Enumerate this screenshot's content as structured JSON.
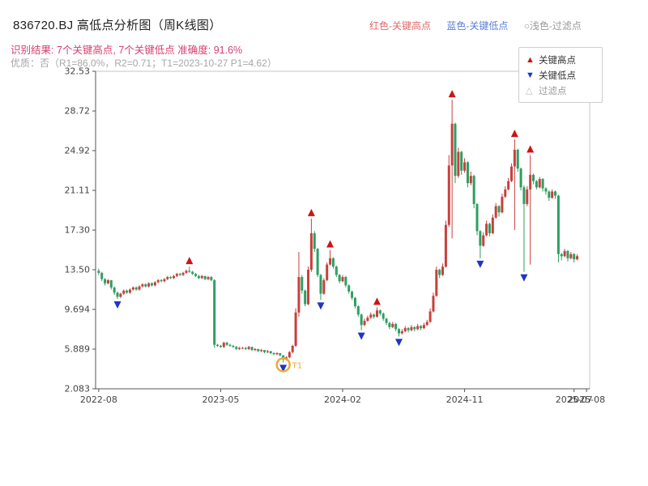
{
  "header": {
    "title": "836720.BJ 高低点分析图（周K线图）",
    "legend_top": [
      {
        "label": "红色-关键高点",
        "color": "#e06a6a"
      },
      {
        "label": "蓝色-关键低点",
        "color": "#5b7fd6"
      },
      {
        "label": "○浅色-过滤点",
        "color": "#9a9a9a"
      }
    ],
    "result_line": "识别结果: 7个关键高点, 7个关键低点  准确度: 91.6%",
    "quality_line": "优质：否（R1=86.0%，R2=0.71；T1=2023-10-27 P1=4.62）",
    "recognition": {
      "key_highs": 7,
      "key_lows": 7,
      "accuracy": "91.6%"
    }
  },
  "chart_legend": {
    "items": [
      {
        "label": "关键高点",
        "marker": "up-triangle",
        "color": "#cc1414"
      },
      {
        "label": "关键低点",
        "marker": "down-triangle",
        "color": "#1f35c4"
      },
      {
        "label": "过滤点",
        "marker": "light-triangle",
        "color": "#bbbbbb"
      }
    ]
  },
  "chart_data": {
    "type": "candlestick",
    "title": "836720.BJ 高低点分析图（周K线图）",
    "xlabel": "",
    "ylabel": "",
    "grid": false,
    "legend_position": "top-right",
    "ylim": [
      2.083,
      32.53
    ],
    "xlim_weeks": [
      -1,
      157
    ],
    "y_ticks": [
      [
        2.083,
        "2.083"
      ],
      [
        5.889,
        "5.889"
      ],
      [
        9.694,
        "9.694"
      ],
      [
        13.5,
        "13.50"
      ],
      [
        17.3,
        "17.30"
      ],
      [
        21.11,
        "21.11"
      ],
      [
        24.92,
        "24.92"
      ],
      [
        28.72,
        "28.72"
      ],
      [
        32.53,
        "32.53"
      ]
    ],
    "x_ticks": [
      [
        0,
        "2022-08"
      ],
      [
        39,
        "2023-05"
      ],
      [
        78,
        "2024-02"
      ],
      [
        117,
        "2024-11"
      ],
      [
        152,
        "2025-07"
      ],
      [
        156,
        "2025-08"
      ]
    ],
    "colors": {
      "up": "#c8403c",
      "down": "#2e9e62",
      "key_high": "#cc1414",
      "key_low": "#1f35c4",
      "filtered_ring": "#f0a838"
    },
    "candles": [
      [
        13.4,
        13.6,
        13.0,
        13.2
      ],
      [
        13.2,
        13.3,
        12.4,
        12.6
      ],
      [
        12.6,
        12.7,
        12.0,
        12.2
      ],
      [
        12.2,
        12.6,
        12.1,
        12.5
      ],
      [
        12.5,
        12.5,
        11.6,
        11.8
      ],
      [
        11.8,
        11.9,
        11.1,
        11.3
      ],
      [
        11.3,
        11.4,
        10.7,
        10.9
      ],
      [
        10.9,
        11.3,
        10.8,
        11.2
      ],
      [
        11.2,
        11.6,
        11.1,
        11.5
      ],
      [
        11.5,
        11.6,
        11.2,
        11.3
      ],
      [
        11.3,
        11.7,
        11.2,
        11.6
      ],
      [
        11.6,
        11.9,
        11.5,
        11.8
      ],
      [
        11.8,
        11.9,
        11.5,
        11.6
      ],
      [
        11.6,
        12.0,
        11.5,
        11.9
      ],
      [
        11.9,
        12.2,
        11.8,
        12.1
      ],
      [
        12.1,
        12.2,
        11.8,
        11.9
      ],
      [
        11.9,
        12.3,
        11.8,
        12.2
      ],
      [
        12.2,
        12.3,
        11.9,
        12.0
      ],
      [
        12.0,
        12.4,
        11.9,
        12.3
      ],
      [
        12.3,
        12.6,
        12.2,
        12.5
      ],
      [
        12.5,
        12.6,
        12.3,
        12.4
      ],
      [
        12.4,
        12.7,
        12.3,
        12.6
      ],
      [
        12.6,
        12.9,
        12.5,
        12.8
      ],
      [
        12.8,
        12.9,
        12.6,
        12.7
      ],
      [
        12.7,
        13.0,
        12.6,
        12.9
      ],
      [
        12.9,
        13.2,
        12.8,
        13.1
      ],
      [
        13.1,
        13.2,
        12.9,
        13.0
      ],
      [
        13.0,
        13.3,
        12.9,
        13.2
      ],
      [
        13.2,
        13.5,
        13.1,
        13.4
      ],
      [
        13.4,
        13.8,
        13.2,
        13.3
      ],
      [
        13.3,
        13.4,
        13.0,
        13.1
      ],
      [
        13.1,
        13.2,
        12.8,
        12.9
      ],
      [
        12.9,
        13.0,
        12.6,
        12.7
      ],
      [
        12.7,
        13.0,
        12.6,
        12.9
      ],
      [
        12.9,
        12.9,
        12.5,
        12.6
      ],
      [
        12.6,
        12.9,
        12.5,
        12.8
      ],
      [
        12.8,
        12.9,
        12.4,
        12.5
      ],
      [
        12.5,
        12.6,
        6.0,
        6.3
      ],
      [
        6.3,
        6.4,
        6.1,
        6.2
      ],
      [
        6.2,
        6.3,
        6.0,
        6.1
      ],
      [
        6.1,
        6.6,
        6.0,
        6.5
      ],
      [
        6.5,
        6.6,
        6.2,
        6.3
      ],
      [
        6.3,
        6.4,
        6.1,
        6.2
      ],
      [
        6.2,
        6.3,
        6.0,
        6.1
      ],
      [
        6.1,
        6.2,
        5.8,
        5.9
      ],
      [
        5.9,
        6.1,
        5.8,
        6.0
      ],
      [
        6.0,
        6.1,
        5.9,
        6.0
      ],
      [
        6.0,
        6.1,
        5.8,
        5.9
      ],
      [
        5.9,
        6.2,
        5.8,
        6.1
      ],
      [
        6.1,
        6.1,
        5.7,
        5.8
      ],
      [
        5.8,
        6.0,
        5.7,
        5.9
      ],
      [
        5.9,
        5.9,
        5.6,
        5.7
      ],
      [
        5.7,
        5.9,
        5.6,
        5.8
      ],
      [
        5.8,
        5.8,
        5.5,
        5.6
      ],
      [
        5.6,
        5.8,
        5.5,
        5.7
      ],
      [
        5.7,
        5.7,
        5.4,
        5.5
      ],
      [
        5.5,
        5.6,
        5.3,
        5.4
      ],
      [
        5.4,
        5.6,
        5.3,
        5.5
      ],
      [
        5.5,
        5.5,
        5.2,
        5.3
      ],
      [
        5.3,
        5.3,
        4.62,
        4.9
      ],
      [
        4.9,
        5.2,
        4.8,
        5.1
      ],
      [
        5.1,
        5.7,
        5.0,
        5.6
      ],
      [
        5.6,
        6.3,
        5.5,
        6.2
      ],
      [
        6.2,
        9.8,
        6.1,
        9.4
      ],
      [
        9.4,
        15.2,
        9.0,
        12.8
      ],
      [
        12.8,
        13.0,
        11.2,
        11.5
      ],
      [
        11.5,
        11.6,
        10.0,
        10.2
      ],
      [
        10.2,
        13.8,
        10.1,
        13.5
      ],
      [
        13.5,
        18.4,
        13.3,
        17.0
      ],
      [
        17.0,
        17.2,
        15.2,
        15.5
      ],
      [
        15.5,
        15.6,
        12.8,
        13.0
      ],
      [
        13.0,
        13.1,
        10.6,
        11.2
      ],
      [
        11.2,
        12.7,
        11.1,
        12.5
      ],
      [
        12.5,
        14.2,
        12.4,
        14.0
      ],
      [
        14.0,
        15.4,
        13.9,
        14.6
      ],
      [
        14.6,
        14.7,
        13.6,
        13.8
      ],
      [
        13.8,
        13.9,
        12.8,
        13.0
      ],
      [
        13.0,
        13.1,
        12.2,
        12.4
      ],
      [
        12.4,
        13.0,
        12.3,
        12.8
      ],
      [
        12.8,
        12.9,
        11.8,
        12.0
      ],
      [
        12.0,
        12.1,
        11.2,
        11.4
      ],
      [
        11.4,
        11.5,
        10.6,
        10.8
      ],
      [
        10.8,
        10.9,
        9.8,
        10.0
      ],
      [
        10.0,
        10.1,
        9.0,
        9.2
      ],
      [
        9.2,
        9.3,
        7.7,
        8.2
      ],
      [
        8.2,
        8.8,
        8.1,
        8.6
      ],
      [
        8.6,
        9.1,
        8.5,
        8.9
      ],
      [
        8.9,
        9.4,
        8.8,
        9.2
      ],
      [
        9.2,
        9.3,
        8.8,
        9.0
      ],
      [
        9.0,
        9.9,
        8.9,
        9.6
      ],
      [
        9.6,
        9.7,
        9.1,
        9.3
      ],
      [
        9.3,
        9.4,
        8.6,
        8.8
      ],
      [
        8.8,
        8.9,
        8.2,
        8.4
      ],
      [
        8.4,
        8.5,
        7.8,
        8.0
      ],
      [
        8.0,
        8.5,
        7.9,
        8.3
      ],
      [
        8.3,
        8.4,
        7.6,
        7.8
      ],
      [
        7.8,
        7.9,
        7.1,
        7.4
      ],
      [
        7.4,
        7.8,
        7.3,
        7.6
      ],
      [
        7.6,
        8.1,
        7.5,
        7.9
      ],
      [
        7.9,
        8.0,
        7.5,
        7.7
      ],
      [
        7.7,
        8.2,
        7.6,
        8.0
      ],
      [
        8.0,
        8.1,
        7.6,
        7.8
      ],
      [
        7.8,
        8.3,
        7.7,
        8.1
      ],
      [
        8.1,
        8.2,
        7.7,
        7.9
      ],
      [
        7.9,
        8.4,
        7.8,
        8.2
      ],
      [
        8.2,
        8.7,
        8.1,
        8.5
      ],
      [
        8.5,
        9.8,
        8.4,
        9.5
      ],
      [
        9.5,
        11.3,
        9.4,
        11.0
      ],
      [
        11.0,
        13.8,
        10.9,
        13.5
      ],
      [
        13.5,
        13.6,
        12.7,
        13.0
      ],
      [
        13.0,
        14.1,
        12.9,
        13.8
      ],
      [
        13.8,
        18.2,
        13.7,
        17.8
      ],
      [
        17.8,
        24.5,
        17.6,
        23.5
      ],
      [
        23.5,
        29.8,
        16.5,
        27.5
      ],
      [
        27.5,
        27.6,
        21.8,
        22.5
      ],
      [
        22.5,
        25.2,
        22.3,
        24.8
      ],
      [
        24.8,
        24.9,
        22.6,
        23.0
      ],
      [
        23.0,
        24.2,
        22.8,
        23.8
      ],
      [
        23.8,
        23.9,
        21.4,
        21.8
      ],
      [
        21.8,
        22.9,
        21.6,
        22.5
      ],
      [
        22.5,
        22.6,
        19.4,
        19.8
      ],
      [
        19.8,
        19.9,
        16.8,
        17.2
      ],
      [
        17.2,
        17.3,
        14.6,
        15.8
      ],
      [
        15.8,
        17.1,
        15.7,
        16.8
      ],
      [
        16.8,
        18.2,
        16.7,
        17.9
      ],
      [
        17.9,
        18.0,
        16.7,
        17.0
      ],
      [
        17.0,
        18.8,
        16.9,
        18.5
      ],
      [
        18.5,
        19.9,
        18.4,
        19.6
      ],
      [
        19.6,
        19.7,
        18.6,
        19.0
      ],
      [
        19.0,
        20.8,
        18.9,
        20.5
      ],
      [
        20.5,
        21.5,
        20.4,
        21.2
      ],
      [
        21.2,
        22.3,
        21.1,
        22.0
      ],
      [
        22.0,
        23.7,
        21.9,
        23.4
      ],
      [
        23.4,
        26.0,
        17.3,
        25.0
      ],
      [
        25.0,
        25.1,
        22.9,
        23.2
      ],
      [
        23.2,
        23.3,
        21.1,
        21.4
      ],
      [
        21.4,
        21.6,
        13.3,
        19.8
      ],
      [
        19.8,
        21.5,
        19.6,
        21.2
      ],
      [
        21.2,
        24.5,
        14.0,
        22.6
      ],
      [
        22.6,
        22.7,
        21.7,
        22.0
      ],
      [
        22.0,
        22.1,
        21.2,
        21.4
      ],
      [
        21.4,
        22.4,
        21.3,
        22.2
      ],
      [
        22.2,
        22.3,
        21.0,
        21.3
      ],
      [
        21.3,
        21.4,
        20.7,
        21.0
      ],
      [
        21.0,
        21.1,
        20.1,
        20.4
      ],
      [
        20.4,
        21.2,
        20.3,
        21.0
      ],
      [
        21.0,
        21.1,
        20.3,
        20.6
      ],
      [
        20.6,
        20.7,
        14.2,
        15.0
      ],
      [
        15.0,
        15.1,
        14.4,
        14.8
      ],
      [
        14.8,
        15.5,
        14.7,
        15.3
      ],
      [
        15.3,
        15.4,
        14.3,
        14.6
      ],
      [
        14.6,
        15.2,
        14.5,
        15.0
      ],
      [
        15.0,
        15.1,
        14.2,
        14.5
      ],
      [
        14.5,
        15.0,
        14.4,
        14.8
      ]
    ],
    "key_highs": [
      [
        29,
        13.8
      ],
      [
        68,
        18.4
      ],
      [
        74,
        15.4
      ],
      [
        89,
        9.9
      ],
      [
        113,
        29.8
      ],
      [
        133,
        26.0
      ],
      [
        138,
        24.5
      ]
    ],
    "key_lows": [
      [
        6,
        10.7
      ],
      [
        59,
        4.62
      ],
      [
        71,
        10.6
      ],
      [
        84,
        7.7
      ],
      [
        96,
        7.1
      ],
      [
        122,
        14.6
      ],
      [
        136,
        13.3
      ]
    ],
    "filtered_point": {
      "week": 59,
      "value": 4.62,
      "label": "T1",
      "date": "2023-10-27"
    }
  }
}
